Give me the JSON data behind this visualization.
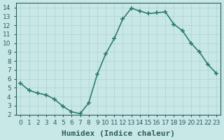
{
  "x": [
    0,
    1,
    2,
    3,
    4,
    5,
    6,
    7,
    8,
    9,
    10,
    11,
    12,
    13,
    14,
    15,
    16,
    17,
    18,
    19,
    20,
    21,
    22,
    23
  ],
  "y": [
    5.5,
    4.7,
    4.4,
    4.2,
    3.7,
    2.9,
    2.3,
    2.1,
    3.3,
    6.5,
    8.8,
    10.5,
    12.7,
    13.9,
    13.6,
    13.3,
    13.4,
    13.5,
    12.1,
    11.4,
    10.0,
    9.0,
    7.6,
    6.6
  ],
  "xlabel": "Humidex (Indice chaleur)",
  "xlim": [
    -0.5,
    23.5
  ],
  "ylim": [
    2,
    14.5
  ],
  "yticks": [
    2,
    3,
    4,
    5,
    6,
    7,
    8,
    9,
    10,
    11,
    12,
    13,
    14
  ],
  "xtick_labels": [
    "0",
    "1",
    "2",
    "3",
    "4",
    "5",
    "6",
    "7",
    "8",
    "9",
    "10",
    "11",
    "12",
    "13",
    "14",
    "15",
    "16",
    "17",
    "18",
    "19",
    "20",
    "21",
    "22",
    "23"
  ],
  "line_color": "#2e7d6e",
  "marker": "+",
  "bg_color": "#c8e8e8",
  "grid_color": "#b0d0d0",
  "font_color": "#2e5d5d",
  "xlabel_fontsize": 8,
  "tick_fontsize": 6.5,
  "linewidth": 1.2,
  "markersize": 5
}
